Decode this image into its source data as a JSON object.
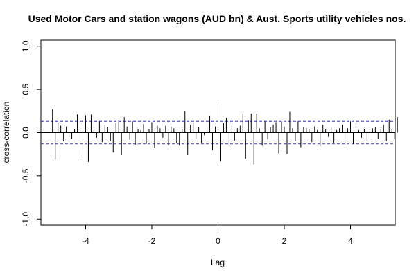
{
  "chart_data": {
    "type": "bar",
    "title": "Used Motor Cars and station wagons (AUD bn) & Aust. Sports utility vehicles nos.",
    "xlabel": "Lag",
    "ylabel": "cross-correlation",
    "xlim": [
      -5.35,
      5.35
    ],
    "ylim": [
      -1.07,
      1.07
    ],
    "x_ticks": [
      -4,
      -2,
      0,
      2,
      4
    ],
    "x_tick_labels": [
      "-4",
      "-2",
      "0",
      "2",
      "4"
    ],
    "y_ticks": [
      -1.0,
      -0.5,
      0.0,
      0.5,
      1.0
    ],
    "y_tick_labels": [
      "-1.0",
      "-0.5",
      "0.0",
      "0.5",
      "1.0"
    ],
    "confidence_bound": 0.13,
    "colors": {
      "bars": "#000000",
      "zero_line": "#000000",
      "confidence": "#3333cc",
      "frame": "#000000"
    },
    "lag_step": 0.08333,
    "lag_start": -5.0,
    "values": [
      0.27,
      -0.31,
      0.12,
      0.08,
      -0.1,
      0.07,
      -0.05,
      -0.07,
      0.04,
      0.21,
      -0.32,
      0.09,
      0.2,
      -0.34,
      0.21,
      0.03,
      -0.06,
      0.13,
      -0.11,
      0.09,
      0.06,
      -0.1,
      -0.23,
      0.11,
      0.14,
      -0.26,
      0.18,
      0.07,
      -0.08,
      0.13,
      -0.14,
      0.04,
      0.03,
      0.1,
      -0.13,
      0.04,
      0.12,
      -0.18,
      0.08,
      0.05,
      -0.06,
      0.08,
      -0.15,
      0.07,
      0.05,
      -0.12,
      -0.15,
      0.04,
      0.25,
      -0.26,
      0.09,
      0.12,
      -0.07,
      0.06,
      -0.12,
      -0.03,
      0.06,
      0.19,
      -0.2,
      0.07,
      0.33,
      -0.33,
      0.11,
      0.17,
      -0.14,
      0.08,
      -0.09,
      0.05,
      0.08,
      0.22,
      -0.3,
      0.14,
      0.22,
      -0.37,
      0.22,
      0.05,
      -0.15,
      0.13,
      -0.08,
      0.06,
      0.09,
      0.12,
      -0.24,
      0.13,
      0.07,
      -0.25,
      0.24,
      0.05,
      -0.1,
      0.13,
      -0.17,
      0.06,
      0.05,
      0.04,
      -0.11,
      0.07,
      0.03,
      -0.16,
      0.09,
      0.04,
      -0.05,
      0.06,
      -0.12,
      0.03,
      0.05,
      0.09,
      -0.15,
      0.05,
      0.13,
      -0.13,
      0.08,
      0.03,
      -0.06,
      0.04,
      -0.09,
      0.02,
      0.05,
      0.06,
      -0.07,
      0.04,
      0.09,
      -0.1,
      0.15,
      0.04,
      -0.07,
      0.18
    ]
  }
}
